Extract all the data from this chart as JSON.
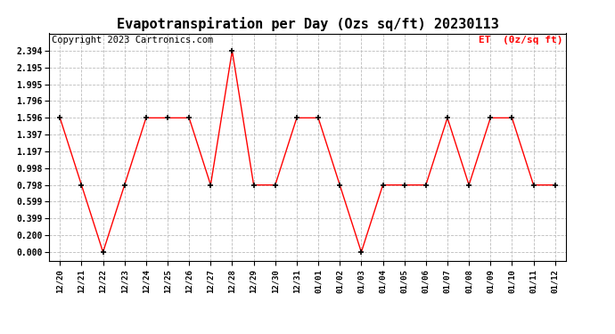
{
  "title": "Evapotranspiration per Day (Ozs sq/ft) 20230113",
  "copyright": "Copyright 2023 Cartronics.com",
  "legend_label": "ET  (0z/sq ft)",
  "x_labels": [
    "12/20",
    "12/21",
    "12/22",
    "12/23",
    "12/24",
    "12/25",
    "12/26",
    "12/27",
    "12/28",
    "12/29",
    "12/30",
    "12/31",
    "01/01",
    "01/02",
    "01/03",
    "01/04",
    "01/05",
    "01/06",
    "01/07",
    "01/08",
    "01/09",
    "01/10",
    "01/11",
    "01/12"
  ],
  "y_values": [
    1.596,
    0.798,
    0.0,
    0.798,
    1.596,
    1.596,
    1.596,
    0.798,
    2.394,
    0.798,
    0.798,
    1.596,
    1.596,
    0.798,
    0.0,
    0.798,
    0.798,
    0.798,
    1.596,
    0.798,
    1.596,
    1.596,
    0.798,
    0.798
  ],
  "y_ticks": [
    0.0,
    0.2,
    0.399,
    0.599,
    0.798,
    0.998,
    1.197,
    1.397,
    1.596,
    1.796,
    1.995,
    2.195,
    2.394
  ],
  "line_color": "red",
  "marker_color": "black",
  "bg_color": "#ffffff",
  "grid_color": "#bbbbbb",
  "title_fontsize": 11,
  "copyright_fontsize": 7.5,
  "legend_color": "red",
  "ylim": [
    -0.1,
    2.6
  ]
}
